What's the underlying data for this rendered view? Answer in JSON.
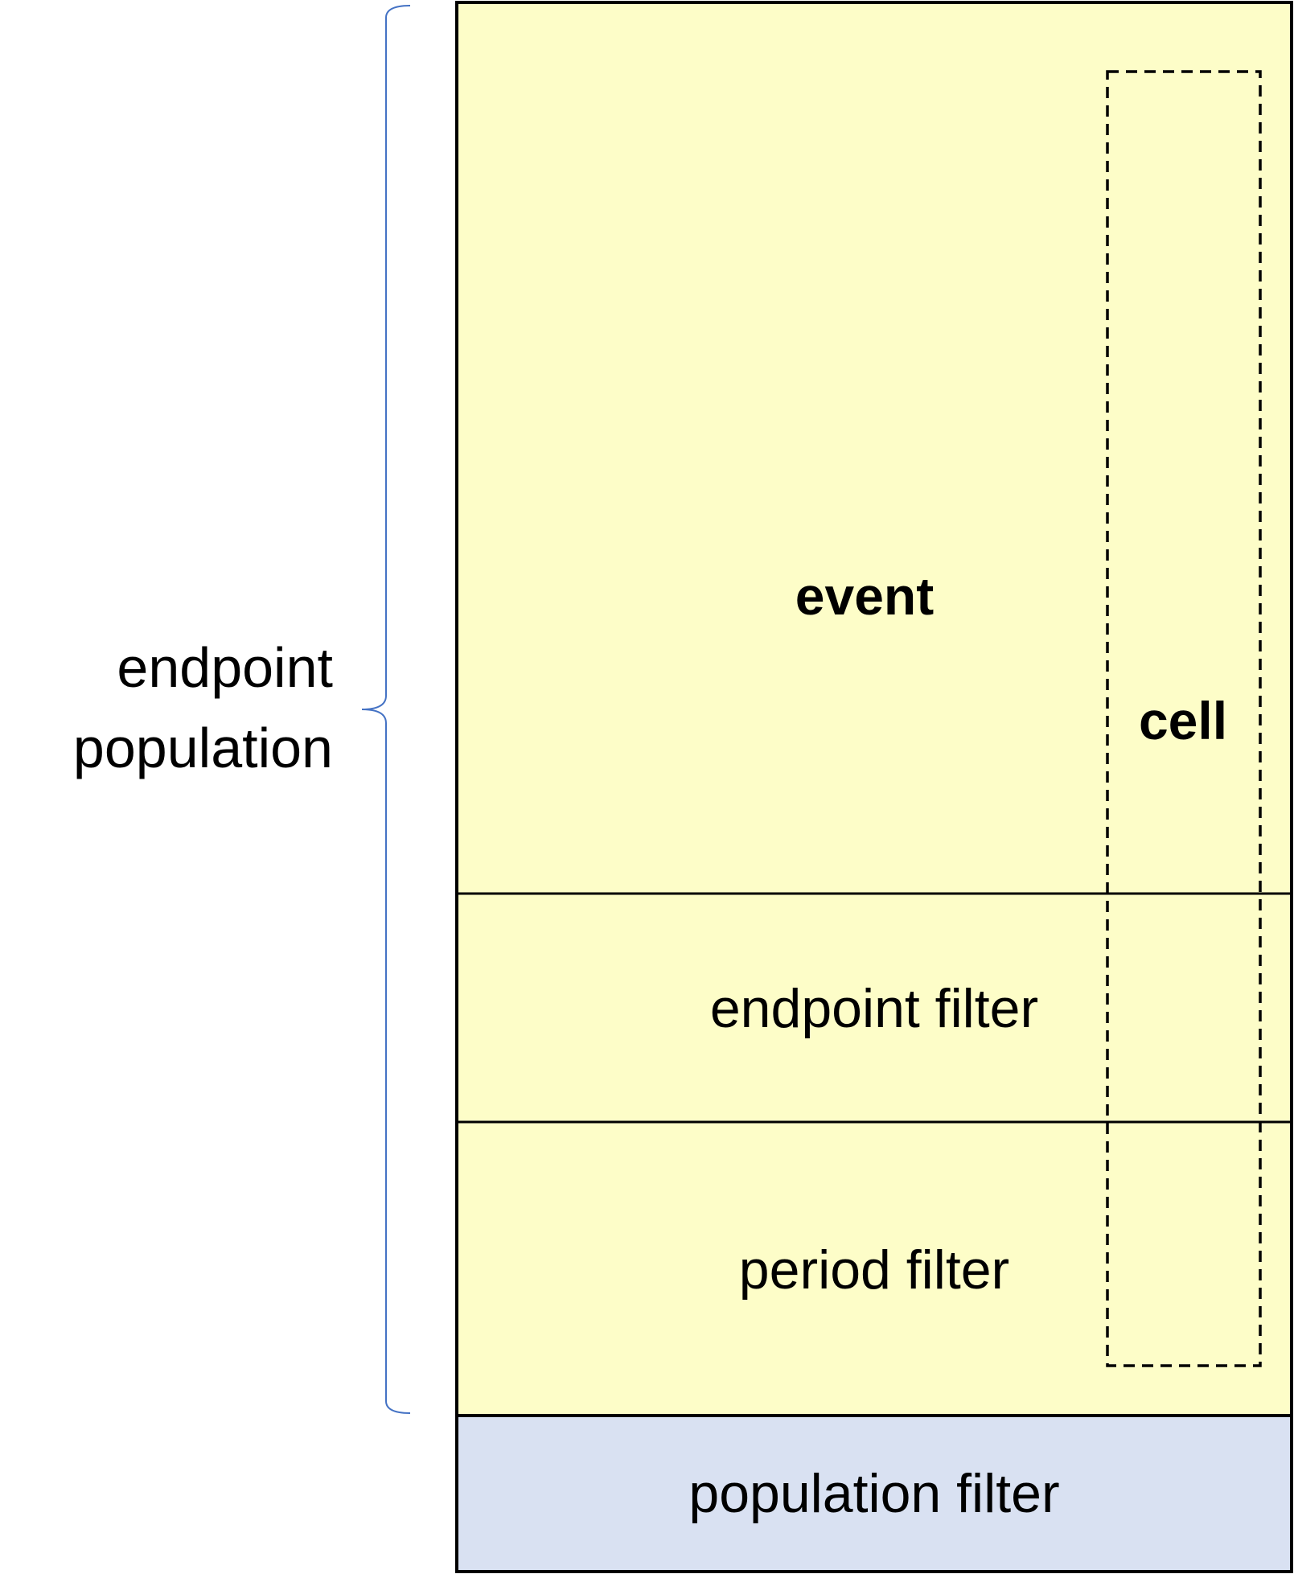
{
  "diagram": {
    "side_label": {
      "line1": "endpoint",
      "line2": "population"
    },
    "sections": {
      "event": "event",
      "cell": "cell",
      "endpoint_filter": "endpoint filter",
      "period_filter": "period filter",
      "population_filter": "population filter"
    },
    "colors": {
      "endpoint_fill": "#fdfdc8",
      "population_fill": "#d9e1f2",
      "brace": "#4472c4",
      "border": "#000000"
    }
  }
}
